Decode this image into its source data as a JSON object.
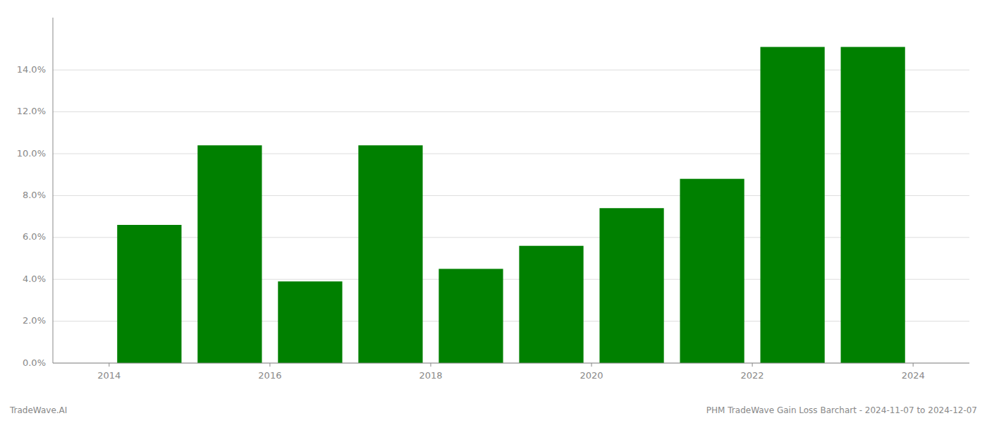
{
  "chart_data": {
    "type": "bar",
    "x": [
      2014,
      2015,
      2016,
      2017,
      2018,
      2019,
      2020,
      2021,
      2022,
      2023
    ],
    "values": [
      0.066,
      0.104,
      0.039,
      0.104,
      0.045,
      0.056,
      0.074,
      0.088,
      0.151,
      0.151
    ],
    "color": "#008000",
    "xlim": [
      2013.3,
      2024.7
    ],
    "xticks": [
      2014,
      2016,
      2018,
      2020,
      2022,
      2024
    ],
    "ylim": [
      0,
      0.165
    ],
    "yticks": [
      {
        "value": 0.0,
        "label": "0.0%"
      },
      {
        "value": 0.02,
        "label": "2.0%"
      },
      {
        "value": 0.04,
        "label": "4.0%"
      },
      {
        "value": 0.06,
        "label": "6.0%"
      },
      {
        "value": 0.08,
        "label": "8.0%"
      },
      {
        "value": 0.1,
        "label": "10.0%"
      },
      {
        "value": 0.12,
        "label": "12.0%"
      },
      {
        "value": 0.14,
        "label": "14.0%"
      }
    ],
    "grid": true,
    "annotations": [
      "TradeWave.AI",
      "PHM TradeWave Gain Loss Barchart - 2024-11-07 to 2024-12-07"
    ]
  }
}
